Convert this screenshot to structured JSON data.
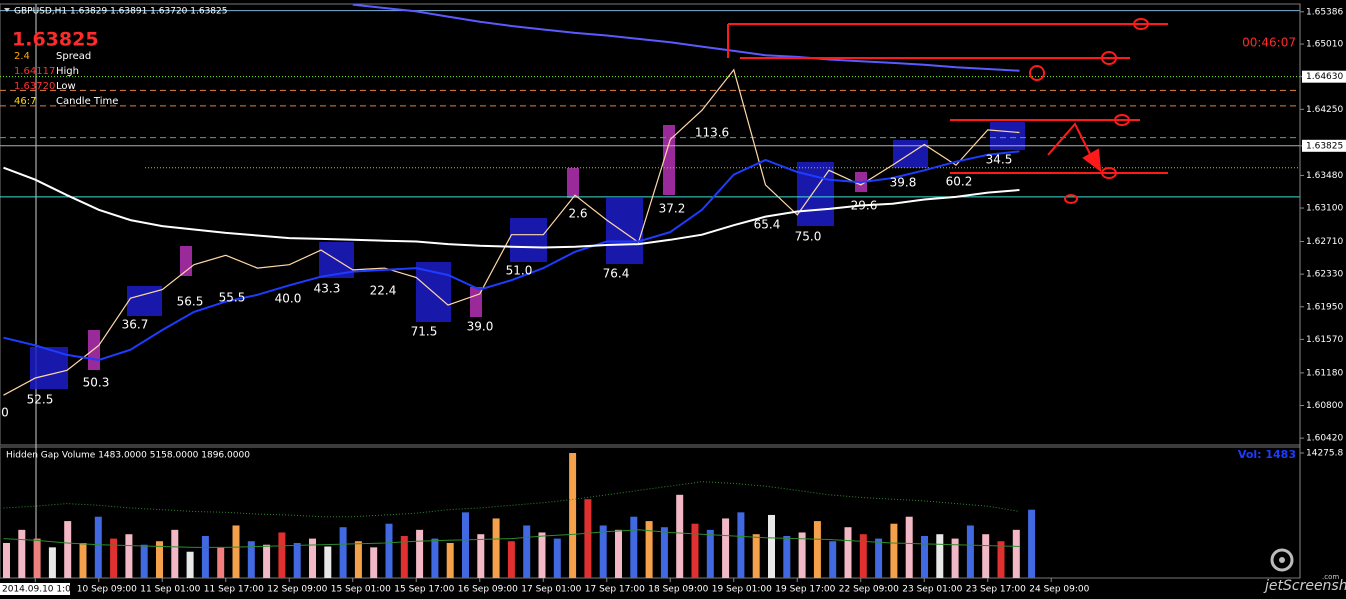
{
  "header": {
    "symbol_line": "GBPUSD,H1  1.63829 1.63891 1.63720 1.63825",
    "price": "1.63825",
    "timer": "00:46:07",
    "info": [
      {
        "value": "2.4",
        "label": "Spread",
        "color": "#ffa500"
      },
      {
        "value": "1.64117",
        "label": "High",
        "color": "#ff3030"
      },
      {
        "value": "1.63720",
        "label": "Low",
        "color": "#ff3030"
      },
      {
        "value": "46:7",
        "label": "Candle Time",
        "color": "#ffd700"
      }
    ],
    "watermark": "jetScreenshot",
    "watermark_sub": ".com"
  },
  "chart_data": [
    {
      "type": "line",
      "categories": [
        null,
        "2014.09.10 1:00",
        null,
        "10 Sep 09:00",
        null,
        "11 Sep 01:00",
        null,
        "11 Sep 17:00",
        null,
        "12 Sep 09:00",
        null,
        "15 Sep 01:00",
        null,
        "15 Sep 17:00",
        null,
        "16 Sep 09:00",
        null,
        "17 Sep 01:00",
        null,
        "17 Sep 17:00",
        null,
        "18 Sep 09:00",
        null,
        "19 Sep 01:00",
        null,
        "19 Sep 17:00",
        null,
        "22 Sep 09:00",
        null,
        "23 Sep 01:00",
        null,
        "23 Sep 17:00",
        null,
        "24 Sep 09:00"
      ],
      "series": [
        {
          "color": "#ffd8a8",
          "values": [
            1.6092,
            1.6112,
            1.6121,
            1.615,
            1.6205,
            1.6215,
            1.6244,
            1.6255,
            1.624,
            1.6244,
            1.6261,
            1.6238,
            1.624,
            1.6229,
            1.6197,
            1.621,
            1.6279,
            1.6279,
            1.6325,
            1.6296,
            1.627,
            1.639,
            1.6424,
            1.6471,
            1.6337,
            1.6302,
            1.6354,
            1.6337,
            1.636,
            1.6384,
            1.636,
            1.6401,
            1.6398,
            null
          ]
        },
        {
          "color": "#1e3cff",
          "values": [
            1.6159,
            1.615,
            1.6139,
            1.6133,
            1.6145,
            1.6168,
            1.6189,
            1.6201,
            1.6209,
            1.622,
            1.623,
            1.6236,
            1.6238,
            1.624,
            1.6232,
            1.6215,
            1.6226,
            1.624,
            1.6259,
            1.6271,
            1.6271,
            1.6282,
            1.6308,
            1.6349,
            1.6366,
            1.6352,
            1.6343,
            1.634,
            1.6345,
            1.6354,
            1.6364,
            1.6372,
            1.6376,
            null
          ]
        },
        {
          "color": "#ffffff",
          "values": [
            1.6357,
            1.6343,
            1.6325,
            1.6308,
            1.6296,
            1.6289,
            1.6285,
            1.6281,
            1.6278,
            1.6275,
            1.6274,
            1.6273,
            1.6272,
            1.6271,
            1.6268,
            1.6266,
            1.6265,
            1.6264,
            1.6265,
            1.6267,
            1.6268,
            1.6273,
            1.6279,
            1.629,
            1.63,
            1.6306,
            1.6309,
            1.6313,
            1.6315,
            1.632,
            1.6323,
            1.6328,
            1.6331,
            null
          ]
        },
        {
          "color": "#5a5aff",
          "values": [
            null,
            null,
            null,
            null,
            null,
            null,
            null,
            null,
            null,
            null,
            null,
            1.6547,
            1.6543,
            1.6539,
            1.6533,
            1.6527,
            1.6522,
            1.6518,
            1.6514,
            1.6511,
            1.6507,
            1.6503,
            1.6498,
            1.6493,
            1.6488,
            1.6486,
            1.6483,
            1.6481,
            1.6479,
            1.6477,
            1.6474,
            1.6472,
            1.647,
            null
          ]
        }
      ],
      "levels": [
        {
          "value": 1.654,
          "color": "#7fb3d5",
          "style": "solid"
        },
        {
          "value": 1.6463,
          "color": "#7cfc00",
          "style": "dotted"
        },
        {
          "value": 1.6447,
          "color": "#e08040",
          "style": "dashed"
        },
        {
          "value": 1.6429,
          "color": "#e08040",
          "style": "dashed"
        },
        {
          "value": 1.6392,
          "color": "#3cb371",
          "style": "dashed"
        },
        {
          "value": 1.63825,
          "color": "#b0b0b0",
          "style": "solid"
        },
        {
          "value": 1.6357,
          "color": "#9acd32",
          "style": "dotted"
        },
        {
          "value": 1.6323,
          "color": "#40e0d0",
          "style": "solid"
        }
      ],
      "annotations": [
        "0",
        "52.5",
        "50.3",
        "36.7",
        "56.5",
        "55.5",
        "40.0",
        "43.3",
        "22.4",
        "71.5",
        "39.0",
        "51.0",
        "2.6",
        "76.4",
        "37.2",
        "113.6",
        "65.4",
        "75.0",
        "29.6",
        "39.8",
        "60.2",
        "34.5"
      ],
      "ylim": [
        1.6034,
        1.6543
      ],
      "yticks": [
        1.65386,
        {
          "value": 1.6501,
          "label": "1.65010"
        },
        {
          "value": 1.6463,
          "label": "1.64630"
        },
        {
          "value": 1.6425,
          "label": "1.64250"
        },
        1.63825,
        {
          "value": 1.6348,
          "label": "1.63480"
        },
        {
          "value": 1.631,
          "label": "1.63100"
        },
        {
          "value": 1.6271,
          "label": "1.62710"
        },
        {
          "value": 1.6233,
          "label": "1.62330"
        },
        {
          "value": 1.6195,
          "label": "1.61950"
        },
        {
          "value": 1.6157,
          "label": "1.61570"
        },
        {
          "value": 1.6118,
          "label": "1.61180"
        },
        {
          "value": 1.608,
          "label": "1.60800"
        },
        {
          "value": 1.6042,
          "label": "1.60420"
        }
      ]
    },
    {
      "type": "bar",
      "title": "Hidden Gap Volume 1483.0000 5158.0000 1896.0000",
      "label": "Vol:  1483",
      "values": [
        4000,
        5500,
        4500,
        3500,
        6500,
        4000,
        7000,
        4500,
        5000,
        3800,
        4200,
        5500,
        3000,
        4800,
        3500,
        6000,
        4200,
        3800,
        5200,
        4000,
        4500,
        3600,
        5800,
        4200,
        3500,
        6200,
        4800,
        5500,
        4500,
        4000,
        7500,
        5000,
        6800,
        4200,
        6000,
        5200,
        4500,
        14275,
        9000,
        6000,
        5500,
        7000,
        6500,
        5800,
        9500,
        6200,
        5500,
        6800,
        7500,
        5000,
        7200,
        4800,
        5200,
        6500,
        4200,
        5800,
        5000,
        4500,
        6200,
        7000,
        4800,
        5000,
        4500,
        6000,
        5000,
        4200,
        5500,
        7800
      ],
      "colors": [
        "#f2b8c6",
        "#f2b8c6",
        "#f08080",
        "#e8e8e8",
        "#f2b8c6",
        "#f5a04a",
        "#4169e1",
        "#e03030",
        "#f2b8c6",
        "#4169e1",
        "#f5a04a",
        "#f2b8c6",
        "#e8e8e8",
        "#4169e1",
        "#f08080",
        "#f5a04a",
        "#4169e1",
        "#f2b8c6",
        "#e03030",
        "#4169e1",
        "#f2b8c6",
        "#e8e8e8",
        "#4169e1",
        "#f5a04a",
        "#f2b8c6",
        "#4169e1",
        "#e03030",
        "#f2b8c6",
        "#4169e1",
        "#f5a04a",
        "#4169e1",
        "#f2b8c6",
        "#f5a04a",
        "#e03030",
        "#4169e1",
        "#f2b8c6",
        "#4169e1",
        "#f5a04a",
        "#e03030",
        "#4169e1",
        "#f2b8c6",
        "#4169e1",
        "#f5a04a",
        "#4169e1",
        "#f2b8c6",
        "#e03030",
        "#4169e1",
        "#f2b8c6",
        "#4169e1",
        "#f5a04a",
        "#e8e8e8",
        "#4169e1",
        "#f2b8c6",
        "#f5a04a",
        "#4169e1",
        "#f2b8c6",
        "#e03030",
        "#4169e1",
        "#f5a04a",
        "#f2b8c6",
        "#4169e1",
        "#e8e8e8",
        "#f2b8c6",
        "#4169e1",
        "#f2b8c6",
        "#e03030",
        "#f2b8c6",
        "#4169e1"
      ],
      "series": [
        {
          "color": "#2e8b2e",
          "style": "dotted",
          "values": [
            8000,
            8200,
            8500,
            8300,
            8000,
            7800,
            7600,
            7500,
            7300,
            7200,
            7000,
            7000,
            7200,
            7400,
            7800,
            8000,
            8300,
            8600,
            9000,
            9500,
            10000,
            10500,
            11000,
            10800,
            10500,
            10000,
            9500,
            9200,
            9000,
            8800,
            8500,
            8200,
            7600,
            null
          ]
        },
        {
          "color": "#2e8b2e",
          "style": "solid",
          "values": [
            4500,
            4300,
            4000,
            3800,
            3700,
            3600,
            3500,
            3500,
            3600,
            3700,
            3800,
            3900,
            4000,
            4200,
            4300,
            4400,
            4500,
            4800,
            5000,
            5300,
            5500,
            5200,
            5000,
            4800,
            4600,
            4500,
            4400,
            4200,
            4000,
            3900,
            3800,
            3700,
            3600,
            null
          ]
        }
      ],
      "ylim": [
        0,
        14275.8
      ],
      "yticks": [
        14275.8
      ]
    }
  ]
}
